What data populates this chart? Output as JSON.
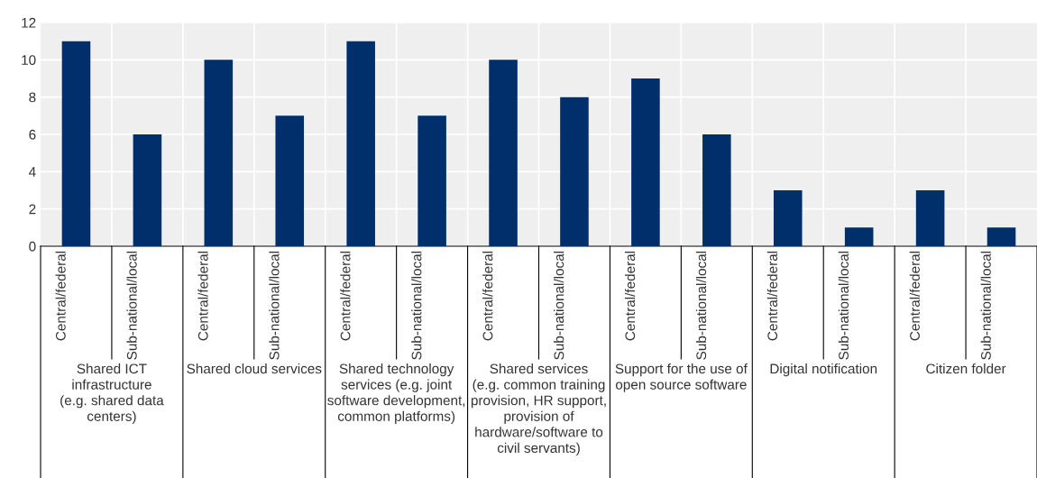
{
  "chart_data": {
    "type": "bar",
    "categories": [
      "Central/federal",
      "Sub-national/local",
      "Central/federal",
      "Sub-national/local",
      "Central/federal",
      "Sub-national/local",
      "Central/federal",
      "Sub-national/local",
      "Central/federal",
      "Sub-national/local",
      "Central/federal",
      "Sub-national/local",
      "Central/federal",
      "Sub-national/local"
    ],
    "values": [
      11,
      6,
      10,
      7,
      11,
      7,
      10,
      8,
      9,
      6,
      3,
      1,
      3,
      1
    ],
    "color": "#002f6c",
    "annotations": [
      "Shared ICT\ninfrastructure\n(e.g. shared data\ncenters)",
      "Shared cloud services",
      "Shared technology\nservices (e.g. joint\nsoftware development,\ncommon platforms)",
      "Shared services\n(e.g. common training\nprovision, HR support,\nprovision of\nhardware/software to\ncivil servants)",
      "Support for the use of\nopen source software",
      "Digital notification",
      "Citizen folder"
    ],
    "ylim": [
      0,
      12
    ],
    "yticks": [
      0,
      2,
      4,
      6,
      8,
      10,
      12
    ],
    "grid": "y"
  }
}
